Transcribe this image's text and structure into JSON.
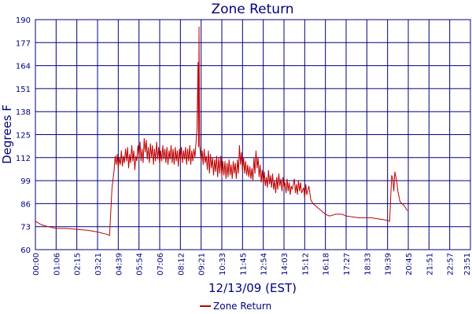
{
  "chart_data": {
    "type": "line",
    "title": "Zone Return",
    "xlabel": "12/13/09 (EST)",
    "ylabel": "Degrees F",
    "ylim": [
      60,
      190
    ],
    "yticks": [
      "60",
      "73",
      "86",
      "99",
      "112",
      "125",
      "138",
      "151",
      "164",
      "177",
      "190"
    ],
    "xticks": [
      "00:00",
      "01:06",
      "02:15",
      "03:21",
      "04:39",
      "05:54",
      "07:06",
      "08:12",
      "09:21",
      "10:33",
      "11:45",
      "12:54",
      "14:03",
      "15:12",
      "16:18",
      "17:27",
      "18:33",
      "19:39",
      "20:45",
      "21:51",
      "22:57",
      "23:51"
    ],
    "grid": true,
    "legend_position": "bottom-center",
    "colors": {
      "series": "#c00000",
      "grid": "#000080",
      "text": "#000080"
    },
    "series": [
      {
        "name": "Zone Return",
        "points": [
          [
            0.0,
            76
          ],
          [
            0.3,
            74
          ],
          [
            0.6,
            73
          ],
          [
            1.0,
            72
          ],
          [
            1.5,
            72
          ],
          [
            2.0,
            71.5
          ],
          [
            2.5,
            71
          ],
          [
            3.0,
            70
          ],
          [
            3.5,
            68.5
          ],
          [
            3.58,
            68
          ],
          [
            3.7,
            95
          ],
          [
            3.8,
            105
          ],
          [
            3.85,
            113
          ],
          [
            3.9,
            108
          ],
          [
            3.95,
            114
          ],
          [
            4.0,
            106
          ],
          [
            4.05,
            112
          ],
          [
            4.1,
            108
          ],
          [
            4.15,
            116
          ],
          [
            4.2,
            107
          ],
          [
            4.25,
            113
          ],
          [
            4.3,
            109
          ],
          [
            4.35,
            117
          ],
          [
            4.4,
            110
          ],
          [
            4.45,
            118
          ],
          [
            4.5,
            106
          ],
          [
            4.55,
            114
          ],
          [
            4.6,
            109
          ],
          [
            4.65,
            119
          ],
          [
            4.7,
            110
          ],
          [
            4.75,
            116
          ],
          [
            4.8,
            105
          ],
          [
            4.85,
            113
          ],
          [
            4.9,
            110
          ],
          [
            4.95,
            119
          ],
          [
            5.0,
            112
          ],
          [
            5.05,
            121
          ],
          [
            5.1,
            110
          ],
          [
            5.15,
            117
          ],
          [
            5.2,
            109
          ],
          [
            5.25,
            123
          ],
          [
            5.3,
            115
          ],
          [
            5.35,
            122
          ],
          [
            5.4,
            111
          ],
          [
            5.45,
            118
          ],
          [
            5.5,
            109
          ],
          [
            5.55,
            120
          ],
          [
            5.6,
            112
          ],
          [
            5.65,
            119
          ],
          [
            5.7,
            108
          ],
          [
            5.75,
            117
          ],
          [
            5.8,
            110
          ],
          [
            5.85,
            121
          ],
          [
            5.9,
            111
          ],
          [
            5.95,
            118
          ],
          [
            6.0,
            108
          ],
          [
            6.05,
            116
          ],
          [
            6.1,
            110
          ],
          [
            6.15,
            119
          ],
          [
            6.2,
            111
          ],
          [
            6.25,
            117
          ],
          [
            6.3,
            109
          ],
          [
            6.35,
            118
          ],
          [
            6.4,
            108
          ],
          [
            6.45,
            116
          ],
          [
            6.5,
            111
          ],
          [
            6.55,
            119
          ],
          [
            6.6,
            109
          ],
          [
            6.65,
            117
          ],
          [
            6.7,
            108
          ],
          [
            6.75,
            118
          ],
          [
            6.8,
            110
          ],
          [
            6.85,
            116
          ],
          [
            6.9,
            107
          ],
          [
            6.95,
            117
          ],
          [
            7.0,
            110
          ],
          [
            7.05,
            118
          ],
          [
            7.1,
            109
          ],
          [
            7.15,
            116
          ],
          [
            7.2,
            111
          ],
          [
            7.25,
            118
          ],
          [
            7.3,
            108
          ],
          [
            7.35,
            117
          ],
          [
            7.4,
            110
          ],
          [
            7.45,
            119
          ],
          [
            7.5,
            108
          ],
          [
            7.55,
            116
          ],
          [
            7.6,
            110
          ],
          [
            7.65,
            117
          ],
          [
            7.7,
            112
          ],
          [
            7.8,
            128
          ],
          [
            7.85,
            166
          ],
          [
            7.88,
            118
          ],
          [
            7.9,
            186
          ],
          [
            7.93,
            119
          ],
          [
            8.0,
            110
          ],
          [
            8.05,
            116
          ],
          [
            8.1,
            108
          ],
          [
            8.15,
            117
          ],
          [
            8.2,
            109
          ],
          [
            8.25,
            113
          ],
          [
            8.3,
            105
          ],
          [
            8.35,
            116
          ],
          [
            8.4,
            103
          ],
          [
            8.45,
            114
          ],
          [
            8.5,
            106
          ],
          [
            8.55,
            112
          ],
          [
            8.6,
            102
          ],
          [
            8.65,
            111
          ],
          [
            8.7,
            104
          ],
          [
            8.75,
            113
          ],
          [
            8.8,
            101
          ],
          [
            8.85,
            112
          ],
          [
            8.9,
            103
          ],
          [
            8.95,
            113
          ],
          [
            9.0,
            101
          ],
          [
            9.05,
            110
          ],
          [
            9.1,
            102
          ],
          [
            9.15,
            110
          ],
          [
            9.2,
            100
          ],
          [
            9.25,
            109
          ],
          [
            9.3,
            101
          ],
          [
            9.35,
            111
          ],
          [
            9.4,
            102
          ],
          [
            9.45,
            108
          ],
          [
            9.5,
            100
          ],
          [
            9.55,
            110
          ],
          [
            9.6,
            103
          ],
          [
            9.65,
            109
          ],
          [
            9.7,
            100
          ],
          [
            9.75,
            111
          ],
          [
            9.8,
            103
          ],
          [
            9.85,
            119
          ],
          [
            9.9,
            108
          ],
          [
            9.95,
            115
          ],
          [
            10.0,
            104
          ],
          [
            10.05,
            112
          ],
          [
            10.1,
            103
          ],
          [
            10.15,
            110
          ],
          [
            10.2,
            102
          ],
          [
            10.25,
            108
          ],
          [
            10.3,
            101
          ],
          [
            10.35,
            107
          ],
          [
            10.4,
            100
          ],
          [
            10.45,
            106
          ],
          [
            10.5,
            99
          ],
          [
            10.55,
            112
          ],
          [
            10.6,
            103
          ],
          [
            10.65,
            116
          ],
          [
            10.7,
            106
          ],
          [
            10.75,
            112
          ],
          [
            10.8,
            101
          ],
          [
            10.85,
            108
          ],
          [
            10.9,
            98
          ],
          [
            10.95,
            105
          ],
          [
            11.0,
            97
          ],
          [
            11.05,
            104
          ],
          [
            11.1,
            96
          ],
          [
            11.15,
            101
          ],
          [
            11.2,
            95
          ],
          [
            11.25,
            105
          ],
          [
            11.3,
            97
          ],
          [
            11.35,
            102
          ],
          [
            11.4,
            95
          ],
          [
            11.45,
            103
          ],
          [
            11.5,
            94
          ],
          [
            11.55,
            99
          ],
          [
            11.6,
            92
          ],
          [
            11.65,
            101
          ],
          [
            11.7,
            94
          ],
          [
            11.75,
            103
          ],
          [
            11.8,
            96
          ],
          [
            11.85,
            100
          ],
          [
            11.9,
            93
          ],
          [
            11.95,
            101
          ],
          [
            12.0,
            95
          ],
          [
            12.05,
            98
          ],
          [
            12.1,
            92
          ],
          [
            12.15,
            100
          ],
          [
            12.2,
            93
          ],
          [
            12.25,
            98
          ],
          [
            12.3,
            91
          ],
          [
            12.35,
            96
          ],
          [
            12.4,
            94
          ],
          [
            12.5,
            100
          ],
          [
            12.55,
            92
          ],
          [
            12.6,
            97
          ],
          [
            12.65,
            91
          ],
          [
            12.7,
            99
          ],
          [
            12.75,
            93
          ],
          [
            12.8,
            98
          ],
          [
            12.85,
            92
          ],
          [
            12.95,
            95
          ],
          [
            13.0,
            89
          ],
          [
            13.05,
            97
          ],
          [
            13.1,
            91
          ],
          [
            13.2,
            96
          ],
          [
            13.3,
            88
          ],
          [
            13.4,
            86
          ],
          [
            13.6,
            84
          ],
          [
            13.8,
            82
          ],
          [
            14.0,
            80
          ],
          [
            14.2,
            79
          ],
          [
            14.5,
            80
          ],
          [
            14.8,
            80
          ],
          [
            15.0,
            79
          ],
          [
            15.3,
            78.5
          ],
          [
            15.6,
            78
          ],
          [
            15.9,
            78
          ],
          [
            16.2,
            78
          ],
          [
            16.5,
            77.5
          ],
          [
            16.8,
            77
          ],
          [
            17.0,
            76.5
          ],
          [
            17.1,
            76
          ],
          [
            17.2,
            102
          ],
          [
            17.25,
            100
          ],
          [
            17.3,
            93
          ],
          [
            17.35,
            104
          ],
          [
            17.4,
            101
          ],
          [
            17.45,
            98
          ],
          [
            17.5,
            93
          ],
          [
            17.55,
            90
          ],
          [
            17.6,
            87
          ],
          [
            17.8,
            85
          ],
          [
            17.95,
            82
          ]
        ]
      }
    ]
  }
}
